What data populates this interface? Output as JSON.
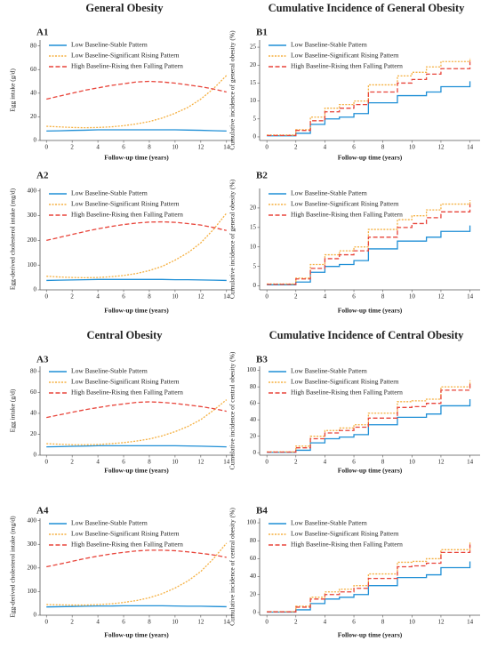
{
  "headings": [
    "General Obesity",
    "Cumulative Incidence of General Obesity",
    "Central Obesity",
    "Cumulative Incidence of Central Obesity"
  ],
  "chart_data": [
    {
      "type": "line",
      "label": "A1",
      "xlabel": "Follow-up time (years)",
      "ylabel": "Egg  intake (g/d)",
      "x": [
        0,
        1,
        2,
        3,
        4,
        5,
        6,
        7,
        8,
        9,
        10,
        11,
        12,
        13,
        14
      ],
      "xlim": [
        -0.5,
        14.5
      ],
      "xticks": [
        0,
        2,
        4,
        6,
        8,
        10,
        12,
        14
      ],
      "ylim": [
        0,
        85
      ],
      "yticks": [
        0,
        20,
        40,
        60,
        80
      ],
      "step": false,
      "legend": "upper left",
      "series": [
        {
          "name": "Low Baseline-Stable Pattern",
          "color": "#1f8fd6",
          "linestyle": "solid",
          "values": [
            8,
            8.2,
            8.5,
            8.7,
            9,
            9,
            9,
            9,
            9,
            9,
            9,
            8.8,
            8.6,
            8.3,
            8
          ]
        },
        {
          "name": "Low Baseline-Significant Rising Pattern",
          "color": "#f5b041",
          "linestyle": "dotted",
          "values": [
            12,
            11.5,
            11,
            10.8,
            11,
            11.5,
            12.5,
            14,
            16,
            19,
            23,
            28,
            35,
            44,
            55
          ]
        },
        {
          "name": "High Baseline-Rising then Falling Pattern",
          "color": "#e8443a",
          "linestyle": "dashed",
          "values": [
            35,
            37.5,
            40,
            42.5,
            44.5,
            46.5,
            48,
            49.5,
            50,
            49.5,
            48.5,
            47,
            45.5,
            43.5,
            41
          ]
        }
      ]
    },
    {
      "type": "line",
      "label": "B1",
      "xlabel": "Follow-up time (years)",
      "ylabel": "Cumulative incidence of general obesity (%)",
      "x": [
        0,
        1,
        2,
        3,
        4,
        5,
        6,
        7,
        8,
        9,
        10,
        11,
        12,
        13,
        14
      ],
      "xlim": [
        -0.5,
        14.7
      ],
      "xticks": [
        0,
        2,
        4,
        6,
        8,
        10,
        12,
        14
      ],
      "ylim": [
        -1,
        27
      ],
      "yticks": [
        0,
        5,
        10,
        15,
        20,
        25
      ],
      "step": true,
      "legend": "upper left",
      "series": [
        {
          "name": "Low Baseline-Stable Pattern",
          "color": "#1f8fd6",
          "linestyle": "solid",
          "values": [
            0.3,
            0.3,
            1,
            3.5,
            5,
            5.5,
            6.5,
            9.5,
            9.5,
            11.5,
            11.5,
            12.5,
            14,
            14,
            15.5
          ]
        },
        {
          "name": "Low Baseline-Significant Rising Pattern",
          "color": "#f5b041",
          "linestyle": "dotted",
          "values": [
            0.5,
            0.5,
            2,
            5.5,
            8,
            9,
            10,
            14.5,
            14.5,
            17,
            18,
            19.5,
            21,
            21,
            22
          ]
        },
        {
          "name": "High Baseline-Rising then Falling Pattern",
          "color": "#e8443a",
          "linestyle": "dashed",
          "values": [
            0.4,
            0.4,
            1.8,
            4.5,
            7,
            8,
            9,
            12.5,
            12.5,
            15,
            16,
            17.5,
            19,
            19,
            21
          ]
        }
      ]
    },
    {
      "type": "line",
      "label": "A2",
      "xlabel": "Follow-up time (years)",
      "ylabel": "Egg-derived cholesterol intake (mg/d)",
      "x": [
        0,
        1,
        2,
        3,
        4,
        5,
        6,
        7,
        8,
        9,
        10,
        11,
        12,
        13,
        14
      ],
      "xlim": [
        -0.5,
        14.5
      ],
      "xticks": [
        0,
        2,
        4,
        6,
        8,
        10,
        12,
        14
      ],
      "ylim": [
        0,
        410
      ],
      "yticks": [
        0,
        100,
        200,
        300,
        400
      ],
      "step": false,
      "legend": "upper left",
      "series": [
        {
          "name": "Low Baseline-Stable Pattern",
          "color": "#1f8fd6",
          "linestyle": "solid",
          "values": [
            38,
            39,
            40,
            41,
            42,
            42,
            42,
            42,
            42,
            42,
            41,
            41,
            40,
            39,
            38
          ]
        },
        {
          "name": "Low Baseline-Significant Rising Pattern",
          "color": "#f5b041",
          "linestyle": "dotted",
          "values": [
            55,
            52,
            50,
            49,
            50,
            53,
            58,
            66,
            78,
            95,
            120,
            150,
            190,
            245,
            310
          ]
        },
        {
          "name": "High Baseline-Rising then Falling Pattern",
          "color": "#e8443a",
          "linestyle": "dashed",
          "values": [
            200,
            212,
            224,
            236,
            247,
            256,
            264,
            270,
            274,
            275,
            273,
            268,
            262,
            252,
            240
          ]
        }
      ]
    },
    {
      "type": "line",
      "label": "B2",
      "xlabel": "Follow-up time (years)",
      "ylabel": "Cumulative incidence of general obesity (%)",
      "x": [
        0,
        1,
        2,
        3,
        4,
        5,
        6,
        7,
        8,
        9,
        10,
        11,
        12,
        13,
        14
      ],
      "xlim": [
        -0.5,
        14.7
      ],
      "xticks": [
        0,
        2,
        4,
        6,
        8,
        10,
        12,
        14
      ],
      "ylim": [
        -1,
        25
      ],
      "yticks": [
        0,
        5,
        10,
        15,
        20
      ],
      "step": true,
      "legend": "upper left",
      "series": [
        {
          "name": "Low Baseline-Stable Pattern",
          "color": "#1f8fd6",
          "linestyle": "solid",
          "values": [
            0.3,
            0.3,
            1,
            3.5,
            5,
            5.5,
            6.5,
            9.5,
            9.5,
            11.5,
            11.5,
            12.5,
            14,
            14,
            15.5
          ]
        },
        {
          "name": "Low Baseline-Significant Rising Pattern",
          "color": "#f5b041",
          "linestyle": "dotted",
          "values": [
            0.5,
            0.5,
            2,
            5.5,
            8,
            9,
            10,
            14.5,
            14.5,
            17,
            18,
            19.5,
            21,
            21,
            22
          ]
        },
        {
          "name": "High Baseline-Rising then Falling Pattern",
          "color": "#e8443a",
          "linestyle": "dashed",
          "values": [
            0.4,
            0.4,
            1.8,
            4.5,
            7,
            8,
            9,
            12.5,
            12.5,
            15,
            16,
            17.5,
            19,
            19,
            21
          ]
        }
      ]
    },
    {
      "type": "line",
      "label": "A3",
      "xlabel": "Follow-up time (years)",
      "ylabel": "Egg  intake (g/d)",
      "x": [
        0,
        1,
        2,
        3,
        4,
        5,
        6,
        7,
        8,
        9,
        10,
        11,
        12,
        13,
        14
      ],
      "xlim": [
        -0.5,
        14.5
      ],
      "xticks": [
        0,
        2,
        4,
        6,
        8,
        10,
        12,
        14
      ],
      "ylim": [
        0,
        85
      ],
      "yticks": [
        0,
        20,
        40,
        60,
        80
      ],
      "step": false,
      "legend": "upper left",
      "series": [
        {
          "name": "Low Baseline-Stable Pattern",
          "color": "#1f8fd6",
          "linestyle": "solid",
          "values": [
            8,
            8.2,
            8.5,
            8.7,
            9,
            9,
            9,
            9,
            9,
            9,
            9,
            8.8,
            8.6,
            8.3,
            8
          ]
        },
        {
          "name": "Low Baseline-Significant Rising Pattern",
          "color": "#f5b041",
          "linestyle": "dotted",
          "values": [
            11,
            10.5,
            10,
            10,
            10.2,
            11,
            12,
            13.5,
            15.5,
            18.5,
            22.5,
            27.5,
            34,
            43,
            53
          ]
        },
        {
          "name": "High Baseline-Rising then Falling Pattern",
          "color": "#e8443a",
          "linestyle": "dashed",
          "values": [
            36,
            38.5,
            41,
            43.5,
            45.5,
            47.5,
            49,
            50.5,
            51,
            50.5,
            49.5,
            48,
            46.5,
            44.5,
            42
          ]
        }
      ]
    },
    {
      "type": "line",
      "label": "B3",
      "xlabel": "Follow-up time (years)",
      "ylabel": "Cumulative incidence of central obesity (%)",
      "x": [
        0,
        1,
        2,
        3,
        4,
        5,
        6,
        7,
        8,
        9,
        10,
        11,
        12,
        13,
        14
      ],
      "xlim": [
        -0.5,
        14.7
      ],
      "xticks": [
        0,
        2,
        4,
        6,
        8,
        10,
        12,
        14
      ],
      "ylim": [
        -3,
        105
      ],
      "yticks": [
        0,
        20,
        40,
        60,
        80,
        100
      ],
      "step": true,
      "legend": "upper left",
      "series": [
        {
          "name": "Low Baseline-Stable Pattern",
          "color": "#1f8fd6",
          "linestyle": "solid",
          "values": [
            0.5,
            0.5,
            3,
            12,
            17,
            19,
            22,
            34,
            34,
            43,
            43,
            47,
            57,
            57,
            65
          ]
        },
        {
          "name": "Low Baseline-Significant Rising Pattern",
          "color": "#f5b041",
          "linestyle": "dotted",
          "values": [
            1,
            1,
            8,
            20,
            27,
            30,
            34,
            48,
            48,
            62,
            63,
            65,
            80,
            80,
            88
          ]
        },
        {
          "name": "High Baseline-Rising then Falling Pattern",
          "color": "#e8443a",
          "linestyle": "dashed",
          "values": [
            0.8,
            0.8,
            6,
            17,
            24,
            27,
            31,
            42,
            42,
            55,
            56,
            60,
            76,
            76,
            84
          ]
        }
      ]
    },
    {
      "type": "line",
      "label": "A4",
      "xlabel": "Follow-up time (years)",
      "ylabel": "Egg-derived cholesterol intake (mg/d)",
      "x": [
        0,
        1,
        2,
        3,
        4,
        5,
        6,
        7,
        8,
        9,
        10,
        11,
        12,
        13,
        14
      ],
      "xlim": [
        -0.5,
        14.5
      ],
      "xticks": [
        0,
        2,
        4,
        6,
        8,
        10,
        12,
        14
      ],
      "ylim": [
        0,
        410
      ],
      "yticks": [
        0,
        100,
        200,
        300,
        400
      ],
      "step": false,
      "legend": "upper left",
      "series": [
        {
          "name": "Low Baseline-Stable Pattern",
          "color": "#1f8fd6",
          "linestyle": "solid",
          "values": [
            35,
            36,
            37,
            38,
            39,
            39,
            40,
            40,
            40,
            40,
            39,
            38,
            38,
            37,
            36
          ]
        },
        {
          "name": "Low Baseline-Significant Rising Pattern",
          "color": "#f5b041",
          "linestyle": "dotted",
          "values": [
            45,
            44,
            43,
            43,
            45,
            48,
            54,
            62,
            74,
            91,
            115,
            145,
            185,
            240,
            305
          ]
        },
        {
          "name": "High Baseline-Rising then Falling Pattern",
          "color": "#e8443a",
          "linestyle": "dashed",
          "values": [
            205,
            216,
            228,
            240,
            250,
            259,
            266,
            272,
            275,
            275,
            273,
            268,
            262,
            255,
            245
          ]
        }
      ]
    },
    {
      "type": "line",
      "label": "B4",
      "xlabel": "Follow-up time (years)",
      "ylabel": "Cumulative incidence of central obesity (%)",
      "x": [
        0,
        1,
        2,
        3,
        4,
        5,
        6,
        7,
        8,
        9,
        10,
        11,
        12,
        13,
        14
      ],
      "xlim": [
        -0.5,
        14.7
      ],
      "xticks": [
        0,
        2,
        4,
        6,
        8,
        10,
        12,
        14
      ],
      "ylim": [
        -3,
        105
      ],
      "yticks": [
        0,
        20,
        40,
        60,
        80,
        100
      ],
      "step": true,
      "legend": "upper left",
      "series": [
        {
          "name": "Low Baseline-Stable Pattern",
          "color": "#1f8fd6",
          "linestyle": "solid",
          "values": [
            0.5,
            0.5,
            3,
            10,
            15,
            17,
            20,
            30,
            30,
            39,
            39,
            42,
            50,
            50,
            57
          ]
        },
        {
          "name": "Low Baseline-Significant Rising Pattern",
          "color": "#f5b041",
          "linestyle": "dotted",
          "values": [
            1,
            1,
            7,
            17,
            23,
            26,
            30,
            43,
            43,
            56,
            57,
            60,
            70,
            70,
            78
          ]
        },
        {
          "name": "High Baseline-Rising then Falling Pattern",
          "color": "#e8443a",
          "linestyle": "dashed",
          "values": [
            0.8,
            0.8,
            6,
            15,
            20,
            23,
            27,
            38,
            38,
            51,
            52,
            55,
            67,
            67,
            76
          ]
        }
      ]
    }
  ]
}
